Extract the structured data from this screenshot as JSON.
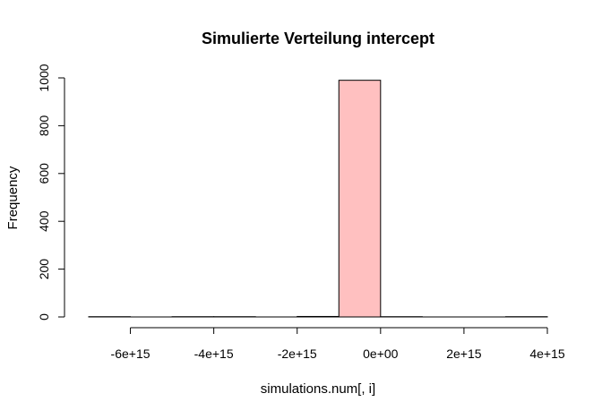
{
  "chart_data": {
    "type": "bar",
    "title": "Simulierte Verteilung intercept",
    "xlabel": "simulations.num[, i]",
    "ylabel": "Frequency",
    "xlim": [
      -7000000000000000.0,
      4000000000000000.0
    ],
    "ylim": [
      0,
      1000
    ],
    "x_ticks": [
      -6000000000000000.0,
      -4000000000000000.0,
      -2000000000000000.0,
      0,
      2000000000000000.0,
      4000000000000000.0
    ],
    "x_tick_labels": [
      "-6e+15",
      "-4e+15",
      "-2e+15",
      "0e+00",
      "2e+15",
      "4e+15"
    ],
    "y_ticks": [
      0,
      200,
      400,
      600,
      800,
      1000
    ],
    "y_tick_labels": [
      "0",
      "200",
      "400",
      "600",
      "800",
      "1000"
    ],
    "bin_edges": [
      -7000000000000000.0,
      -6000000000000000.0,
      -5000000000000000.0,
      -4000000000000000.0,
      -3000000000000000.0,
      -2000000000000000.0,
      -1000000000000000.0,
      0,
      1000000000000000.0,
      2000000000000000.0,
      3000000000000000.0,
      4000000000000000.0
    ],
    "values": [
      1,
      0,
      1,
      1,
      0,
      2,
      990,
      1,
      0,
      0,
      1
    ],
    "fill_color": "#FFC0C0",
    "highlight_fill_color": "#FFC0C0",
    "edge_color": "#000000",
    "grid": false
  }
}
